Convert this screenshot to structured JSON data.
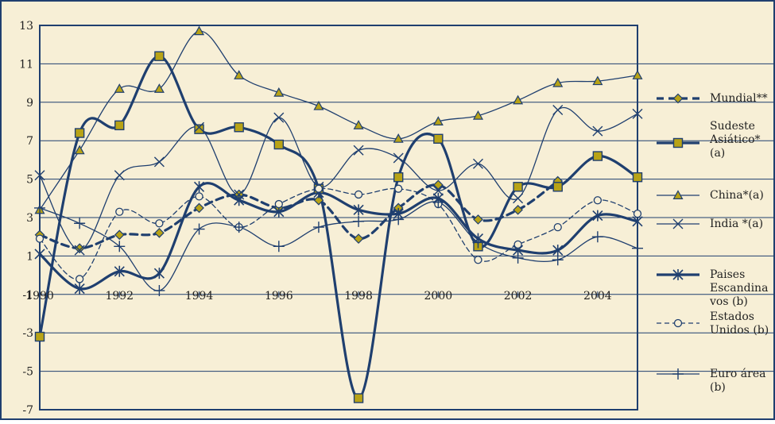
{
  "colors": {
    "background": "#f7efd6",
    "border": "#1f3f6f",
    "line": "#1f3f6f",
    "marker_fill": "#b8a316",
    "text": "#222222"
  },
  "chart_data": {
    "type": "line",
    "title": "",
    "xlabel": "",
    "ylabel": "",
    "xlim": [
      1990,
      2005
    ],
    "ylim": [
      -7,
      13
    ],
    "x_ticks": [
      "1990",
      "1992",
      "1994",
      "1996",
      "1998",
      "2000",
      "2002",
      "2004"
    ],
    "y_ticks": [
      "-7",
      "-5",
      "-3",
      "-1",
      "1",
      "3",
      "5",
      "7",
      "9",
      "11",
      "13"
    ],
    "grid": "horizontal",
    "legend_position": "right",
    "x": [
      1990,
      1991,
      1992,
      1993,
      1994,
      1995,
      1996,
      1997,
      1998,
      1999,
      2000,
      2001,
      2002,
      2003,
      2004,
      2005
    ],
    "series": [
      {
        "name": "Mundial**",
        "style": "dashed-thick",
        "marker": "diamond",
        "values": [
          2.1,
          1.4,
          2.1,
          2.2,
          3.5,
          4.2,
          3.5,
          3.9,
          1.9,
          3.5,
          4.7,
          2.9,
          3.4,
          4.9,
          null,
          null
        ]
      },
      {
        "name": "Sudeste Asiático* (a)",
        "style": "solid-thick",
        "marker": "square",
        "values": [
          -3.2,
          7.4,
          7.8,
          11.4,
          7.6,
          7.7,
          6.8,
          4.5,
          -6.4,
          5.1,
          7.1,
          1.5,
          4.6,
          4.6,
          6.2,
          5.1
        ]
      },
      {
        "name": "China*(a)",
        "style": "solid",
        "marker": "triangle",
        "values": [
          3.4,
          6.5,
          9.7,
          9.7,
          12.7,
          10.4,
          9.5,
          8.8,
          7.8,
          7.1,
          8.0,
          8.3,
          9.1,
          10.0,
          10.1,
          10.4
        ]
      },
      {
        "name": "India *(a)",
        "style": "solid",
        "marker": "x",
        "values": [
          5.2,
          1.3,
          5.2,
          5.9,
          7.7,
          4.2,
          8.2,
          4.6,
          6.5,
          6.1,
          4.4,
          5.8,
          4.0,
          8.6,
          7.5,
          8.4
        ]
      },
      {
        "name": "Paises Escandinavos (b)",
        "style": "solid-thick",
        "marker": "asterisk",
        "values": [
          1.1,
          -0.7,
          0.2,
          0.1,
          4.6,
          3.9,
          3.3,
          4.3,
          3.4,
          3.2,
          4.0,
          1.9,
          1.3,
          1.3,
          3.1,
          2.8
        ]
      },
      {
        "name": "Estados Unidos (b)",
        "style": "dashed",
        "marker": "circle",
        "values": [
          1.9,
          -0.2,
          3.3,
          2.7,
          4.1,
          2.5,
          3.7,
          4.5,
          4.2,
          4.5,
          3.7,
          0.8,
          1.6,
          2.5,
          3.9,
          3.2
        ]
      },
      {
        "name": "Euro área (b)",
        "style": "solid",
        "marker": "plus",
        "values": [
          3.5,
          2.7,
          1.5,
          -0.8,
          2.4,
          2.5,
          1.5,
          2.5,
          2.8,
          2.9,
          3.8,
          1.7,
          0.9,
          0.8,
          2.0,
          1.4
        ]
      }
    ]
  },
  "legend": [
    {
      "lines": [
        "Mundial**"
      ]
    },
    {
      "lines": [
        "Sudeste",
        "Asiático*",
        "(a)"
      ]
    },
    {
      "lines": [
        "China*(a)"
      ]
    },
    {
      "lines": [
        "India  *(a)"
      ]
    },
    {
      "lines": [
        "Paises",
        "Escandina",
        "vos (b)"
      ]
    },
    {
      "lines": [
        "Estados",
        "Unidos (b)"
      ]
    },
    {
      "lines": [
        "Euro área",
        "(b)"
      ]
    }
  ]
}
